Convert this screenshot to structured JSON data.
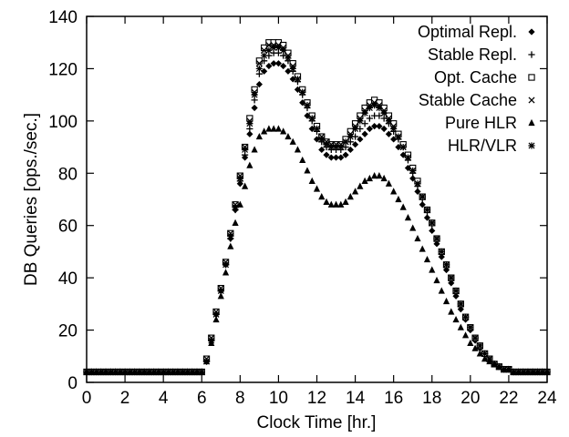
{
  "chart_data": {
    "type": "scatter",
    "title": "",
    "xlabel": "Clock Time [hr.]",
    "ylabel": "DB Queries [ops./sec.]",
    "xlim": [
      0,
      24
    ],
    "ylim": [
      0,
      140
    ],
    "xticks": [
      0,
      2,
      4,
      6,
      8,
      10,
      12,
      14,
      16,
      18,
      20,
      22,
      24
    ],
    "yticks": [
      0,
      20,
      40,
      60,
      80,
      100,
      120,
      140
    ],
    "grid": false,
    "legend_position": "top-right",
    "x": [
      0.0,
      0.25,
      0.5,
      0.75,
      1.0,
      1.25,
      1.5,
      1.75,
      2.0,
      2.25,
      2.5,
      2.75,
      3.0,
      3.25,
      3.5,
      3.75,
      4.0,
      4.25,
      4.5,
      4.75,
      5.0,
      5.25,
      5.5,
      5.75,
      6.0,
      6.25,
      6.5,
      6.75,
      7.0,
      7.25,
      7.5,
      7.75,
      8.0,
      8.25,
      8.5,
      8.75,
      9.0,
      9.25,
      9.5,
      9.75,
      10.0,
      10.25,
      10.5,
      10.75,
      11.0,
      11.25,
      11.5,
      11.75,
      12.0,
      12.25,
      12.5,
      12.75,
      13.0,
      13.25,
      13.5,
      13.75,
      14.0,
      14.25,
      14.5,
      14.75,
      15.0,
      15.25,
      15.5,
      15.75,
      16.0,
      16.25,
      16.5,
      16.75,
      17.0,
      17.25,
      17.5,
      17.75,
      18.0,
      18.25,
      18.5,
      18.75,
      19.0,
      19.25,
      19.5,
      19.75,
      20.0,
      20.25,
      20.5,
      20.75,
      21.0,
      21.25,
      21.5,
      21.75,
      22.0,
      22.25,
      22.5,
      22.75,
      23.0,
      23.25,
      23.5,
      23.75,
      24.0
    ],
    "series": [
      {
        "name": "Optimal Repl.",
        "marker": "diamond",
        "values": [
          4,
          4,
          4,
          4,
          4,
          4,
          4,
          4,
          4,
          4,
          4,
          4,
          4,
          4,
          4,
          4,
          4,
          4,
          4,
          4,
          4,
          4,
          4,
          4,
          4,
          8,
          16,
          26,
          35,
          45,
          55,
          66,
          76,
          86,
          95,
          105,
          114,
          119,
          121,
          122,
          122,
          121,
          119,
          116,
          112,
          107,
          102,
          97,
          93,
          89,
          87,
          86,
          86,
          86,
          87,
          89,
          91,
          93,
          95,
          97,
          98,
          98,
          97,
          95,
          93,
          90,
          87,
          82,
          78,
          73,
          68,
          63,
          58,
          53,
          48,
          43,
          38,
          33,
          28,
          24,
          20,
          16,
          13,
          11,
          9,
          7,
          6,
          5,
          5,
          4,
          4,
          4,
          4,
          4,
          4,
          4,
          4
        ]
      },
      {
        "name": "Stable Repl.",
        "marker": "plus",
        "values": [
          4,
          4,
          4,
          4,
          4,
          4,
          4,
          4,
          4,
          4,
          4,
          4,
          4,
          4,
          4,
          4,
          4,
          4,
          4,
          4,
          4,
          4,
          4,
          4,
          4,
          8,
          16,
          26,
          35,
          45,
          55,
          66,
          77,
          87,
          97,
          108,
          118,
          123,
          125,
          126,
          126,
          125,
          123,
          119,
          115,
          110,
          105,
          100,
          96,
          92,
          90,
          89,
          89,
          89,
          90,
          92,
          94,
          97,
          99,
          101,
          102,
          102,
          101,
          99,
          96,
          93,
          90,
          85,
          80,
          75,
          70,
          65,
          60,
          55,
          49,
          44,
          39,
          34,
          29,
          25,
          21,
          17,
          14,
          11,
          9,
          7,
          6,
          5,
          5,
          4,
          4,
          4,
          4,
          4,
          4,
          4,
          4
        ]
      },
      {
        "name": "Opt. Cache",
        "marker": "square",
        "values": [
          4,
          4,
          4,
          4,
          4,
          4,
          4,
          4,
          4,
          4,
          4,
          4,
          4,
          4,
          4,
          4,
          4,
          4,
          4,
          4,
          4,
          4,
          4,
          4,
          4,
          9,
          17,
          27,
          36,
          46,
          57,
          68,
          79,
          90,
          101,
          112,
          123,
          128,
          130,
          130,
          130,
          129,
          126,
          122,
          117,
          112,
          107,
          102,
          98,
          94,
          92,
          91,
          91,
          91,
          93,
          96,
          99,
          102,
          105,
          107,
          108,
          107,
          105,
          102,
          99,
          95,
          91,
          87,
          82,
          77,
          71,
          66,
          61,
          55,
          50,
          45,
          40,
          35,
          30,
          25,
          21,
          17,
          14,
          11,
          9,
          7,
          6,
          5,
          5,
          4,
          4,
          4,
          4,
          4,
          4,
          4,
          4
        ]
      },
      {
        "name": "Stable Cache",
        "marker": "cross",
        "values": [
          4,
          4,
          4,
          4,
          4,
          4,
          4,
          4,
          4,
          4,
          4,
          4,
          4,
          4,
          4,
          4,
          4,
          4,
          4,
          4,
          4,
          4,
          4,
          4,
          4,
          9,
          17,
          27,
          36,
          46,
          57,
          68,
          79,
          90,
          100,
          111,
          122,
          127,
          129,
          129,
          129,
          128,
          125,
          121,
          116,
          111,
          106,
          101,
          97,
          94,
          92,
          91,
          91,
          91,
          92,
          95,
          98,
          101,
          104,
          106,
          107,
          106,
          104,
          101,
          98,
          94,
          90,
          86,
          81,
          76,
          71,
          66,
          61,
          55,
          50,
          45,
          40,
          35,
          30,
          25,
          21,
          17,
          14,
          11,
          9,
          7,
          6,
          5,
          5,
          4,
          4,
          4,
          4,
          4,
          4,
          4,
          4
        ]
      },
      {
        "name": "Pure HLR",
        "marker": "triangle",
        "values": [
          4,
          4,
          4,
          4,
          4,
          4,
          4,
          4,
          4,
          4,
          4,
          4,
          4,
          4,
          4,
          4,
          4,
          4,
          4,
          4,
          4,
          4,
          4,
          4,
          4,
          8,
          15,
          24,
          33,
          42,
          52,
          61,
          68,
          75,
          83,
          89,
          94,
          96,
          97,
          97,
          97,
          96,
          94,
          92,
          89,
          85,
          81,
          77,
          74,
          71,
          69,
          68,
          68,
          68,
          69,
          71,
          73,
          75,
          77,
          78,
          79,
          79,
          78,
          76,
          73,
          70,
          67,
          63,
          59,
          55,
          51,
          47,
          43,
          39,
          35,
          31,
          27,
          24,
          21,
          18,
          15,
          13,
          11,
          9,
          8,
          7,
          6,
          5,
          5,
          4,
          4,
          4,
          4,
          4,
          4,
          4,
          4
        ]
      },
      {
        "name": "HLR/VLR",
        "marker": "star",
        "values": [
          4,
          4,
          4,
          4,
          4,
          4,
          4,
          4,
          4,
          4,
          4,
          4,
          4,
          4,
          4,
          4,
          4,
          4,
          4,
          4,
          4,
          4,
          4,
          4,
          4,
          8,
          16,
          26,
          35,
          45,
          56,
          67,
          78,
          89,
          99,
          110,
          120,
          125,
          127,
          128,
          128,
          127,
          124,
          120,
          116,
          111,
          106,
          101,
          97,
          93,
          91,
          90,
          90,
          90,
          92,
          94,
          97,
          100,
          103,
          105,
          106,
          105,
          103,
          100,
          97,
          94,
          90,
          86,
          81,
          76,
          71,
          66,
          61,
          55,
          50,
          45,
          40,
          35,
          30,
          25,
          21,
          17,
          14,
          11,
          9,
          7,
          6,
          5,
          5,
          4,
          4,
          4,
          4,
          4,
          4,
          4,
          4
        ]
      }
    ]
  }
}
